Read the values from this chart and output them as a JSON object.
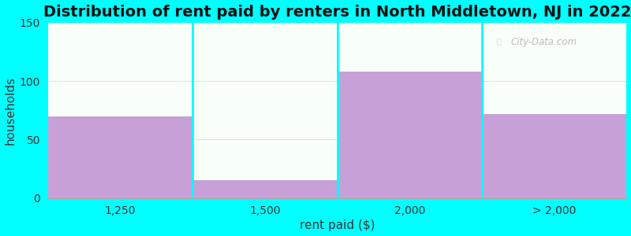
{
  "title": "Distribution of rent paid by renters in North Middletown, NJ in 2022",
  "xlabel": "rent paid ($)",
  "ylabel": "households",
  "categories": [
    "1,250",
    "1,500",
    "2,000",
    "> 2,000"
  ],
  "values": [
    70,
    15,
    108,
    72
  ],
  "bar_color": "#c8a0d8",
  "background_color": "#00ffff",
  "plot_bg_top": "#e8f5e8",
  "plot_bg_bottom": "#f8fff8",
  "ylim": [
    0,
    150
  ],
  "yticks": [
    0,
    50,
    100,
    150
  ],
  "title_fontsize": 14,
  "axis_label_fontsize": 11,
  "tick_fontsize": 10,
  "watermark": "City-Data.com"
}
